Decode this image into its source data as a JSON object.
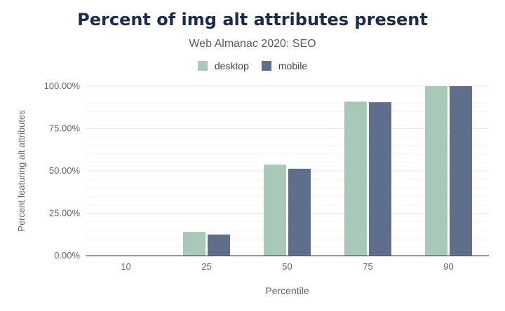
{
  "colors": {
    "desktop": "#a8c9b8",
    "mobile": "#5f6e8b"
  },
  "chart_data": {
    "type": "bar",
    "title": "Percent of img alt attributes present",
    "subtitle": "Web Almanac 2020: SEO",
    "xlabel": "Percentile",
    "ylabel": "Percent featuring alt attributes",
    "categories": [
      "10",
      "25",
      "50",
      "75",
      "90"
    ],
    "series": [
      {
        "name": "desktop",
        "values": [
          0,
          14.0,
          53.8,
          90.9,
          100
        ]
      },
      {
        "name": "mobile",
        "values": [
          0,
          12.5,
          51.3,
          90.5,
          100
        ]
      }
    ],
    "ylim": [
      0,
      100
    ],
    "yticks": [
      "0.00%",
      "25.00%",
      "50.00%",
      "75.00%",
      "100.00%"
    ],
    "legend_position": "top-center",
    "grid": true
  }
}
